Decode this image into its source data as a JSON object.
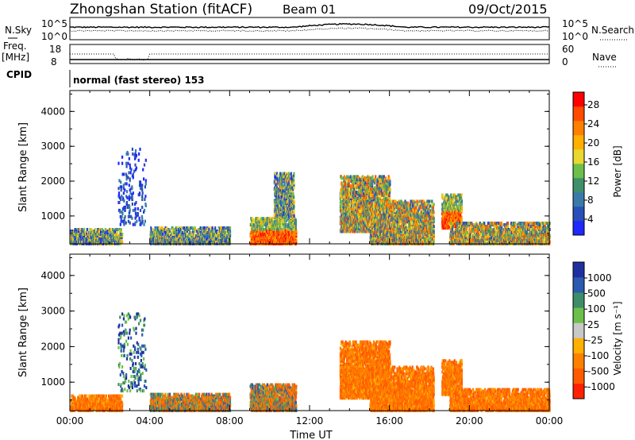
{
  "header": {
    "title": "Zhongshan Station (fitACF)",
    "beam": "Beam 01",
    "date": "09/Oct/2015"
  },
  "panel_sky": {
    "left_label": "N.Sky",
    "right_label": "N.Search",
    "left_ticks": [
      "10^5",
      "10^0"
    ],
    "right_ticks": [
      "10^5",
      "10^0"
    ]
  },
  "panel_freq": {
    "left_label_1": "Freq.",
    "left_label_2": "[MHz]",
    "right_label": "Nave",
    "left_ticks": [
      "18",
      "8"
    ],
    "right_ticks": [
      "60",
      "0"
    ]
  },
  "panel_cpid": {
    "label": "CPID",
    "text": "normal (fast stereo) 153"
  },
  "chart_data": [
    {
      "type": "heatmap",
      "ylabel": "Slant Range [km]",
      "xlabel": "",
      "x_ticks": [
        "00:00",
        "04:00",
        "08:00",
        "12:00",
        "16:00",
        "20:00",
        "00:00"
      ],
      "y_ticks": [
        "1000",
        "2000",
        "3000",
        "4000"
      ],
      "xlim_hours": [
        0,
        24
      ],
      "ylim_km": [
        200,
        4600
      ],
      "colorbar_label": "Power [dB]",
      "colorbar_ticks": [
        "4",
        "8",
        "12",
        "16",
        "20",
        "24",
        "28"
      ],
      "colorbar_colors": [
        "#1e28ff",
        "#2a4fb8",
        "#3a7aa8",
        "#3f8f6a",
        "#6cc04a",
        "#e8d830",
        "#ffb000",
        "#ff8000",
        "#ff4a00",
        "#ff0000"
      ],
      "clusters": [
        {
          "t0": 0.0,
          "t1": 2.6,
          "r0": 250,
          "r1": 700,
          "level": "low"
        },
        {
          "t0": 2.4,
          "t1": 3.8,
          "r0": 800,
          "r1": 3000,
          "level": "sparse"
        },
        {
          "t0": 4.0,
          "t1": 8.0,
          "r0": 250,
          "r1": 750,
          "level": "low"
        },
        {
          "t0": 9.0,
          "t1": 11.3,
          "r0": 250,
          "r1": 1000,
          "level": "high"
        },
        {
          "t0": 10.2,
          "t1": 11.2,
          "r0": 1000,
          "r1": 2300,
          "level": "low"
        },
        {
          "t0": 13.5,
          "t1": 16.0,
          "r0": 600,
          "r1": 2200,
          "level": "mid"
        },
        {
          "t0": 15.0,
          "t1": 18.2,
          "r0": 250,
          "r1": 1500,
          "level": "mid"
        },
        {
          "t0": 18.6,
          "t1": 19.6,
          "r0": 700,
          "r1": 1700,
          "level": "high"
        },
        {
          "t0": 19.0,
          "t1": 24.0,
          "r0": 250,
          "r1": 900,
          "level": "mid"
        }
      ]
    },
    {
      "type": "heatmap",
      "ylabel": "Slant Range [km]",
      "xlabel": "Time UT",
      "x_ticks": [
        "00:00",
        "04:00",
        "08:00",
        "12:00",
        "16:00",
        "20:00",
        "00:00"
      ],
      "y_ticks": [
        "1000",
        "2000",
        "3000",
        "4000"
      ],
      "xlim_hours": [
        0,
        24
      ],
      "ylim_km": [
        200,
        4600
      ],
      "colorbar_label": "Velocity [m s⁻¹]",
      "colorbar_ticks": [
        "1000",
        "500",
        "100",
        "25",
        "-25",
        "-100",
        "-500",
        "-1000"
      ],
      "colorbar_colors": [
        "#1f2fa0",
        "#2a5bb0",
        "#3e8d6a",
        "#6cc04a",
        "#c8c8c8",
        "#ffb000",
        "#ff8000",
        "#ff5a00",
        "#ff2000"
      ],
      "clusters": [
        {
          "t0": 0.0,
          "t1": 2.6,
          "r0": 250,
          "r1": 700,
          "level": "neg"
        },
        {
          "t0": 2.4,
          "t1": 3.8,
          "r0": 800,
          "r1": 3000,
          "level": "sparse"
        },
        {
          "t0": 4.0,
          "t1": 8.0,
          "r0": 250,
          "r1": 750,
          "level": "mix"
        },
        {
          "t0": 9.0,
          "t1": 11.3,
          "r0": 250,
          "r1": 1000,
          "level": "mix"
        },
        {
          "t0": 13.5,
          "t1": 16.0,
          "r0": 600,
          "r1": 2200,
          "level": "neg"
        },
        {
          "t0": 15.0,
          "t1": 18.2,
          "r0": 250,
          "r1": 1500,
          "level": "neg"
        },
        {
          "t0": 18.6,
          "t1": 19.6,
          "r0": 700,
          "r1": 1700,
          "level": "neg"
        },
        {
          "t0": 19.0,
          "t1": 24.0,
          "r0": 250,
          "r1": 900,
          "level": "neg"
        }
      ]
    }
  ]
}
